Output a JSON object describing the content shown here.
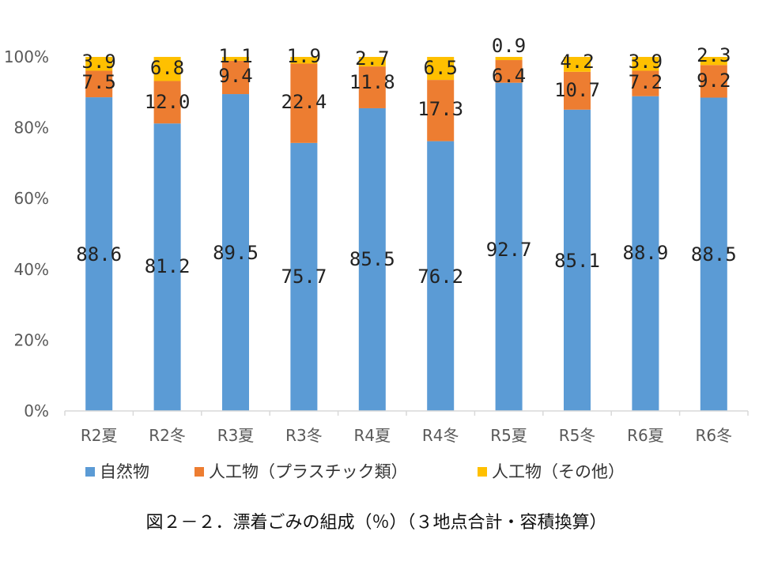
{
  "chart_data": {
    "type": "bar",
    "stacked": true,
    "categories": [
      "R2夏",
      "R2冬",
      "R3夏",
      "R3冬",
      "R4夏",
      "R4冬",
      "R5夏",
      "R5冬",
      "R6夏",
      "R6冬"
    ],
    "series": [
      {
        "name": "自然物",
        "color": "#5B9BD5",
        "values": [
          88.6,
          81.2,
          89.5,
          75.7,
          85.5,
          76.2,
          92.7,
          85.1,
          88.9,
          88.5
        ]
      },
      {
        "name": "人工物（プラスチック類）",
        "color": "#ED7D31",
        "values": [
          7.5,
          12.0,
          9.4,
          22.4,
          11.8,
          17.3,
          6.4,
          10.7,
          7.2,
          9.2
        ]
      },
      {
        "name": "人工物（その他）",
        "color": "#FFC000",
        "values": [
          3.9,
          6.8,
          1.1,
          1.9,
          2.7,
          6.5,
          0.9,
          4.2,
          3.9,
          2.3
        ]
      }
    ],
    "data_labels": [
      [
        "88.6",
        "81.2",
        "89.5",
        "75.7",
        "85.5",
        "76.2",
        "92.7",
        "85.1",
        "88.9",
        "88.5"
      ],
      [
        "7.5",
        "12.0",
        "9.4",
        "22.4",
        "11.8",
        "17.3",
        "6.4",
        "10.7",
        "7.2",
        "9.2"
      ],
      [
        "3.9",
        "6.8",
        "1.1",
        "1.9",
        "2.7",
        "6.5",
        "0.9",
        "4.2",
        "3.9",
        "2.3"
      ]
    ],
    "ylim": [
      0,
      100
    ],
    "yticks": [
      0,
      20,
      40,
      60,
      80,
      100
    ],
    "ytick_labels": [
      "0%",
      "20%",
      "40%",
      "60%",
      "80%",
      "100%"
    ],
    "grid": false,
    "legend_position": "bottom",
    "caption": "図２－２．漂着ごみの組成（％）（３地点合計・容積換算）"
  }
}
